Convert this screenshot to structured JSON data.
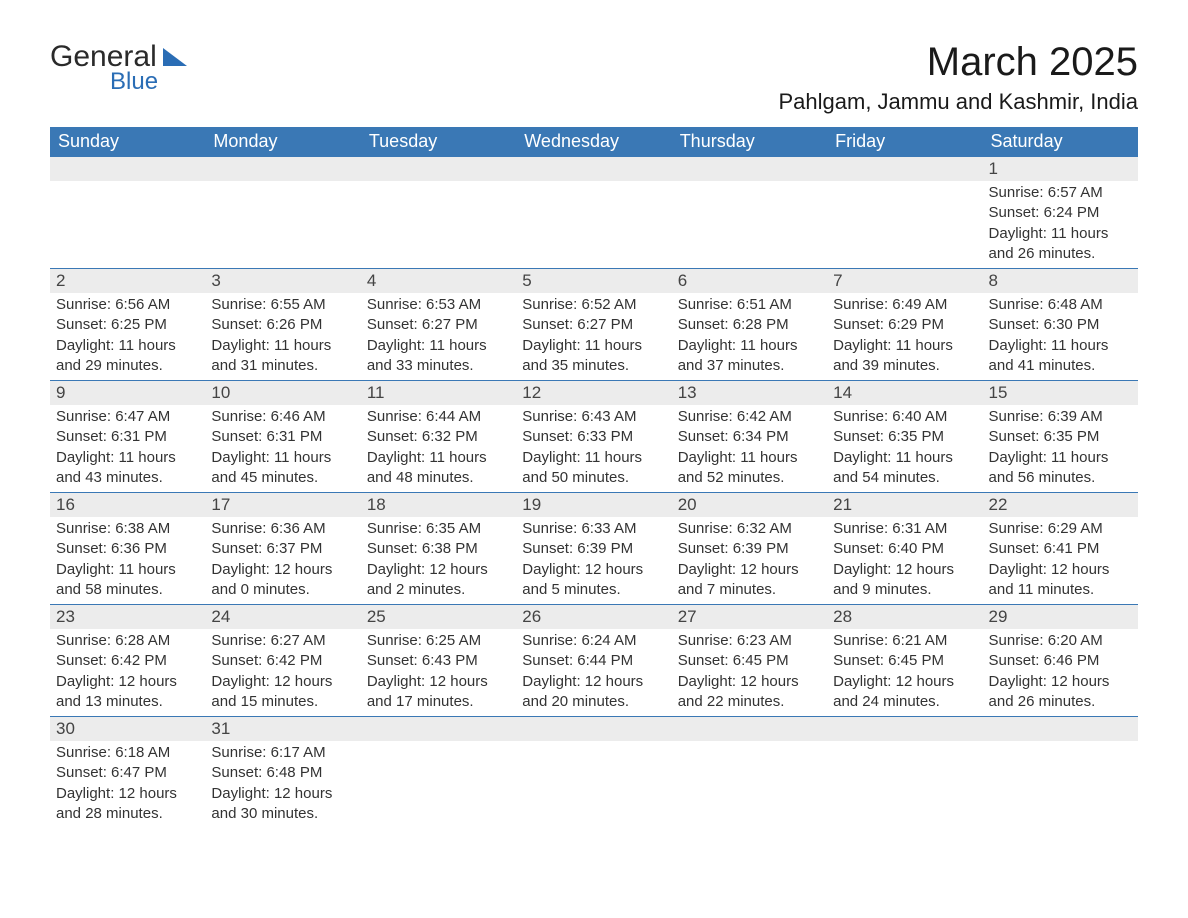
{
  "logo": {
    "line1": "General",
    "line2": "Blue"
  },
  "header": {
    "month_title": "March 2025",
    "location": "Pahlgam, Jammu and Kashmir, India"
  },
  "colors": {
    "header_bg": "#3a78b5",
    "header_fg": "#ffffff",
    "daybar_bg": "#ececec",
    "cell_border": "#3a78b5",
    "logo_blue": "#2a6db5",
    "text": "#333333",
    "page_bg": "#ffffff"
  },
  "typography": {
    "base_font": "Arial",
    "month_title_pt": 40,
    "location_pt": 22,
    "header_pt": 18,
    "daynum_pt": 17,
    "body_pt": 15
  },
  "calendar": {
    "type": "calendar-table",
    "weekdays": [
      "Sunday",
      "Monday",
      "Tuesday",
      "Wednesday",
      "Thursday",
      "Friday",
      "Saturday"
    ],
    "weeks": [
      [
        null,
        null,
        null,
        null,
        null,
        null,
        {
          "n": "1",
          "sunrise": "Sunrise: 6:57 AM",
          "sunset": "Sunset: 6:24 PM",
          "day1": "Daylight: 11 hours",
          "day2": "and 26 minutes."
        }
      ],
      [
        {
          "n": "2",
          "sunrise": "Sunrise: 6:56 AM",
          "sunset": "Sunset: 6:25 PM",
          "day1": "Daylight: 11 hours",
          "day2": "and 29 minutes."
        },
        {
          "n": "3",
          "sunrise": "Sunrise: 6:55 AM",
          "sunset": "Sunset: 6:26 PM",
          "day1": "Daylight: 11 hours",
          "day2": "and 31 minutes."
        },
        {
          "n": "4",
          "sunrise": "Sunrise: 6:53 AM",
          "sunset": "Sunset: 6:27 PM",
          "day1": "Daylight: 11 hours",
          "day2": "and 33 minutes."
        },
        {
          "n": "5",
          "sunrise": "Sunrise: 6:52 AM",
          "sunset": "Sunset: 6:27 PM",
          "day1": "Daylight: 11 hours",
          "day2": "and 35 minutes."
        },
        {
          "n": "6",
          "sunrise": "Sunrise: 6:51 AM",
          "sunset": "Sunset: 6:28 PM",
          "day1": "Daylight: 11 hours",
          "day2": "and 37 minutes."
        },
        {
          "n": "7",
          "sunrise": "Sunrise: 6:49 AM",
          "sunset": "Sunset: 6:29 PM",
          "day1": "Daylight: 11 hours",
          "day2": "and 39 minutes."
        },
        {
          "n": "8",
          "sunrise": "Sunrise: 6:48 AM",
          "sunset": "Sunset: 6:30 PM",
          "day1": "Daylight: 11 hours",
          "day2": "and 41 minutes."
        }
      ],
      [
        {
          "n": "9",
          "sunrise": "Sunrise: 6:47 AM",
          "sunset": "Sunset: 6:31 PM",
          "day1": "Daylight: 11 hours",
          "day2": "and 43 minutes."
        },
        {
          "n": "10",
          "sunrise": "Sunrise: 6:46 AM",
          "sunset": "Sunset: 6:31 PM",
          "day1": "Daylight: 11 hours",
          "day2": "and 45 minutes."
        },
        {
          "n": "11",
          "sunrise": "Sunrise: 6:44 AM",
          "sunset": "Sunset: 6:32 PM",
          "day1": "Daylight: 11 hours",
          "day2": "and 48 minutes."
        },
        {
          "n": "12",
          "sunrise": "Sunrise: 6:43 AM",
          "sunset": "Sunset: 6:33 PM",
          "day1": "Daylight: 11 hours",
          "day2": "and 50 minutes."
        },
        {
          "n": "13",
          "sunrise": "Sunrise: 6:42 AM",
          "sunset": "Sunset: 6:34 PM",
          "day1": "Daylight: 11 hours",
          "day2": "and 52 minutes."
        },
        {
          "n": "14",
          "sunrise": "Sunrise: 6:40 AM",
          "sunset": "Sunset: 6:35 PM",
          "day1": "Daylight: 11 hours",
          "day2": "and 54 minutes."
        },
        {
          "n": "15",
          "sunrise": "Sunrise: 6:39 AM",
          "sunset": "Sunset: 6:35 PM",
          "day1": "Daylight: 11 hours",
          "day2": "and 56 minutes."
        }
      ],
      [
        {
          "n": "16",
          "sunrise": "Sunrise: 6:38 AM",
          "sunset": "Sunset: 6:36 PM",
          "day1": "Daylight: 11 hours",
          "day2": "and 58 minutes."
        },
        {
          "n": "17",
          "sunrise": "Sunrise: 6:36 AM",
          "sunset": "Sunset: 6:37 PM",
          "day1": "Daylight: 12 hours",
          "day2": "and 0 minutes."
        },
        {
          "n": "18",
          "sunrise": "Sunrise: 6:35 AM",
          "sunset": "Sunset: 6:38 PM",
          "day1": "Daylight: 12 hours",
          "day2": "and 2 minutes."
        },
        {
          "n": "19",
          "sunrise": "Sunrise: 6:33 AM",
          "sunset": "Sunset: 6:39 PM",
          "day1": "Daylight: 12 hours",
          "day2": "and 5 minutes."
        },
        {
          "n": "20",
          "sunrise": "Sunrise: 6:32 AM",
          "sunset": "Sunset: 6:39 PM",
          "day1": "Daylight: 12 hours",
          "day2": "and 7 minutes."
        },
        {
          "n": "21",
          "sunrise": "Sunrise: 6:31 AM",
          "sunset": "Sunset: 6:40 PM",
          "day1": "Daylight: 12 hours",
          "day2": "and 9 minutes."
        },
        {
          "n": "22",
          "sunrise": "Sunrise: 6:29 AM",
          "sunset": "Sunset: 6:41 PM",
          "day1": "Daylight: 12 hours",
          "day2": "and 11 minutes."
        }
      ],
      [
        {
          "n": "23",
          "sunrise": "Sunrise: 6:28 AM",
          "sunset": "Sunset: 6:42 PM",
          "day1": "Daylight: 12 hours",
          "day2": "and 13 minutes."
        },
        {
          "n": "24",
          "sunrise": "Sunrise: 6:27 AM",
          "sunset": "Sunset: 6:42 PM",
          "day1": "Daylight: 12 hours",
          "day2": "and 15 minutes."
        },
        {
          "n": "25",
          "sunrise": "Sunrise: 6:25 AM",
          "sunset": "Sunset: 6:43 PM",
          "day1": "Daylight: 12 hours",
          "day2": "and 17 minutes."
        },
        {
          "n": "26",
          "sunrise": "Sunrise: 6:24 AM",
          "sunset": "Sunset: 6:44 PM",
          "day1": "Daylight: 12 hours",
          "day2": "and 20 minutes."
        },
        {
          "n": "27",
          "sunrise": "Sunrise: 6:23 AM",
          "sunset": "Sunset: 6:45 PM",
          "day1": "Daylight: 12 hours",
          "day2": "and 22 minutes."
        },
        {
          "n": "28",
          "sunrise": "Sunrise: 6:21 AM",
          "sunset": "Sunset: 6:45 PM",
          "day1": "Daylight: 12 hours",
          "day2": "and 24 minutes."
        },
        {
          "n": "29",
          "sunrise": "Sunrise: 6:20 AM",
          "sunset": "Sunset: 6:46 PM",
          "day1": "Daylight: 12 hours",
          "day2": "and 26 minutes."
        }
      ],
      [
        {
          "n": "30",
          "sunrise": "Sunrise: 6:18 AM",
          "sunset": "Sunset: 6:47 PM",
          "day1": "Daylight: 12 hours",
          "day2": "and 28 minutes."
        },
        {
          "n": "31",
          "sunrise": "Sunrise: 6:17 AM",
          "sunset": "Sunset: 6:48 PM",
          "day1": "Daylight: 12 hours",
          "day2": "and 30 minutes."
        },
        null,
        null,
        null,
        null,
        null
      ]
    ]
  }
}
